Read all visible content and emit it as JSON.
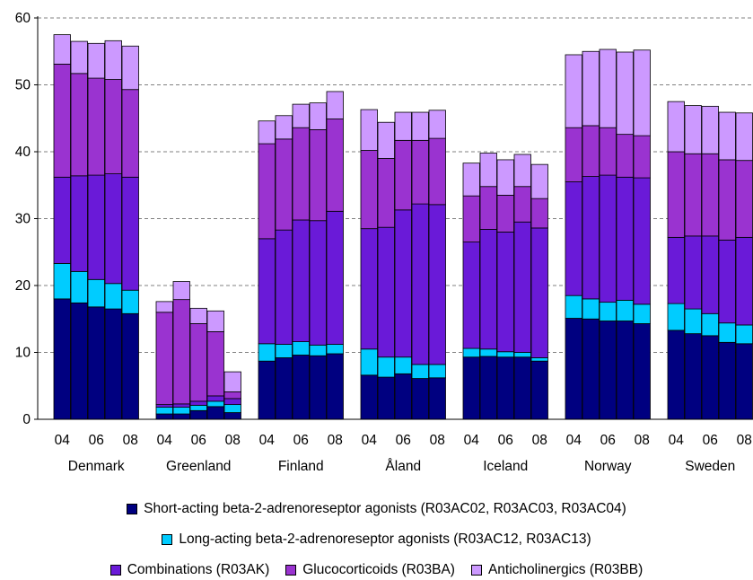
{
  "chart_data": {
    "type": "bar",
    "stacked": true,
    "ylim": [
      0,
      60
    ],
    "yticks": [
      0,
      10,
      20,
      30,
      40,
      50,
      60
    ],
    "grid": "horizontal dashed",
    "legend_position": "bottom",
    "groups": [
      "Denmark",
      "Greenland",
      "Finland",
      "Åland",
      "Iceland",
      "Norway",
      "Sweden"
    ],
    "year_tick_labels": [
      "04",
      "06",
      "08"
    ],
    "series": [
      {
        "name": "Short-acting beta-2-adrenoreseptor agonists (R03AC02, R03AC03, R03AC04)",
        "color": "#000080"
      },
      {
        "name": "Long-acting beta-2-adrenoreseptor agonists (R03AC12, R03AC13)",
        "color": "#00ccff"
      },
      {
        "name": "Combinations (R03AK)",
        "color": "#6a1ad8"
      },
      {
        "name": "Glucocorticoids (R03BA)",
        "color": "#9a33d0"
      },
      {
        "name": "Anticholinergics (R03BB)",
        "color": "#cc99ff"
      }
    ],
    "data": {
      "Denmark": [
        [
          18.0,
          5.3,
          12.9,
          16.9,
          4.4
        ],
        [
          17.4,
          4.7,
          14.3,
          15.3,
          4.8
        ],
        [
          16.8,
          4.1,
          15.6,
          14.5,
          5.2
        ],
        [
          16.5,
          3.8,
          16.4,
          14.1,
          5.8
        ],
        [
          15.8,
          3.5,
          16.9,
          13.1,
          6.5
        ]
      ],
      "Greenland": [
        [
          0.8,
          1.0,
          0.4,
          13.8,
          1.6
        ],
        [
          0.8,
          1.0,
          0.5,
          15.6,
          2.7
        ],
        [
          1.3,
          0.8,
          0.6,
          11.6,
          2.3
        ],
        [
          1.9,
          0.8,
          0.8,
          9.6,
          3.1
        ],
        [
          1.0,
          1.2,
          0.9,
          1.0,
          3.0
        ]
      ],
      "Finland": [
        [
          8.7,
          2.6,
          15.7,
          14.2,
          3.4
        ],
        [
          9.2,
          2.0,
          17.1,
          13.6,
          3.5
        ],
        [
          9.6,
          2.0,
          18.2,
          13.8,
          3.5
        ],
        [
          9.5,
          1.6,
          18.6,
          13.6,
          4.0
        ],
        [
          9.8,
          1.4,
          19.9,
          13.8,
          4.1
        ]
      ],
      "Åland": [
        [
          6.6,
          3.9,
          18.0,
          11.7,
          6.1
        ],
        [
          6.3,
          3.0,
          19.4,
          10.3,
          5.4
        ],
        [
          6.8,
          2.5,
          22.0,
          10.4,
          4.2
        ],
        [
          6.1,
          2.1,
          24.0,
          9.5,
          4.2
        ],
        [
          6.2,
          2.0,
          23.9,
          9.9,
          4.2
        ]
      ],
      "Iceland": [
        [
          9.3,
          1.3,
          15.9,
          6.9,
          4.9
        ],
        [
          9.4,
          1.1,
          17.9,
          6.4,
          5.0
        ],
        [
          9.3,
          0.8,
          17.9,
          5.5,
          5.3
        ],
        [
          9.3,
          0.7,
          19.5,
          5.3,
          4.8
        ],
        [
          8.7,
          0.5,
          19.4,
          4.4,
          5.1
        ]
      ],
      "Norway": [
        [
          15.1,
          3.4,
          17.0,
          8.1,
          10.9
        ],
        [
          15.0,
          3.0,
          18.3,
          7.6,
          11.1
        ],
        [
          14.7,
          2.8,
          19.0,
          7.1,
          11.7
        ],
        [
          14.7,
          3.1,
          18.4,
          6.4,
          12.3
        ],
        [
          14.3,
          2.9,
          18.9,
          6.3,
          12.8
        ]
      ],
      "Sweden": [
        [
          13.3,
          4.0,
          9.9,
          12.8,
          7.5
        ],
        [
          12.8,
          3.7,
          10.9,
          12.3,
          7.2
        ],
        [
          12.5,
          3.3,
          11.6,
          12.3,
          7.1
        ],
        [
          11.5,
          2.9,
          12.4,
          12.0,
          7.1
        ],
        [
          11.3,
          2.8,
          13.1,
          11.5,
          7.1
        ]
      ]
    }
  },
  "legend": {
    "row1": [
      0
    ],
    "row2": [
      1
    ],
    "row3": [
      2,
      3,
      4
    ]
  }
}
